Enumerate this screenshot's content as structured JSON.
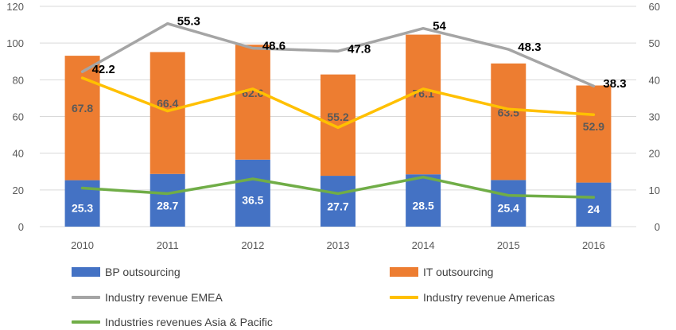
{
  "chart_data": {
    "type": "bar",
    "categories": [
      "2010",
      "2011",
      "2012",
      "2013",
      "2014",
      "2015",
      "2016"
    ],
    "stacked_bars": [
      {
        "name": "BP outsourcing",
        "color": "#4472C4",
        "label_color": "#ffffff",
        "values": [
          25.3,
          28.7,
          36.5,
          27.7,
          28.5,
          25.4,
          24
        ]
      },
      {
        "name": "IT outsourcing",
        "color": "#ED7D31",
        "label_color": "#595959",
        "values": [
          67.8,
          66.4,
          62.6,
          55.2,
          76.1,
          63.5,
          52.9
        ]
      }
    ],
    "lines": [
      {
        "name": "Industry revenue EMEA",
        "color": "#A5A5A5",
        "axis": "right",
        "values": [
          42.2,
          55.3,
          48.6,
          47.8,
          54,
          48.3,
          38.3
        ],
        "labels": [
          "42.2",
          "55.3",
          "48.6",
          "47.8",
          "54",
          "48.3",
          "38.3"
        ]
      },
      {
        "name": "Industry revenue Americas",
        "color": "#FFC000",
        "axis": "right",
        "values": [
          40.5,
          31.5,
          37.5,
          27,
          37.5,
          32,
          30.5
        ]
      },
      {
        "name": "Industries revenues Asia & Pacific",
        "color": "#70AD47",
        "axis": "right",
        "values": [
          10.5,
          9,
          13,
          9,
          13.5,
          8.5,
          8
        ]
      }
    ],
    "y_left": {
      "min": 0,
      "max": 120,
      "ticks": [
        "0",
        "20",
        "40",
        "60",
        "80",
        "100",
        "120"
      ]
    },
    "y_right": {
      "min": 0,
      "max": 60,
      "ticks": [
        "0",
        "10",
        "20",
        "30",
        "40",
        "50",
        "60"
      ]
    },
    "grid": true,
    "legend_position": "bottom"
  },
  "legend": {
    "bp": "BP outsourcing",
    "it": "IT outsourcing",
    "emea": "Industry revenue EMEA",
    "americas": "Industry revenue Americas",
    "apac": "Industries revenues Asia & Pacific"
  },
  "colors": {
    "bp": "#4472C4",
    "it": "#ED7D31",
    "emea": "#A5A5A5",
    "americas": "#FFC000",
    "apac": "#70AD47",
    "grid": "#D9D9D9"
  }
}
